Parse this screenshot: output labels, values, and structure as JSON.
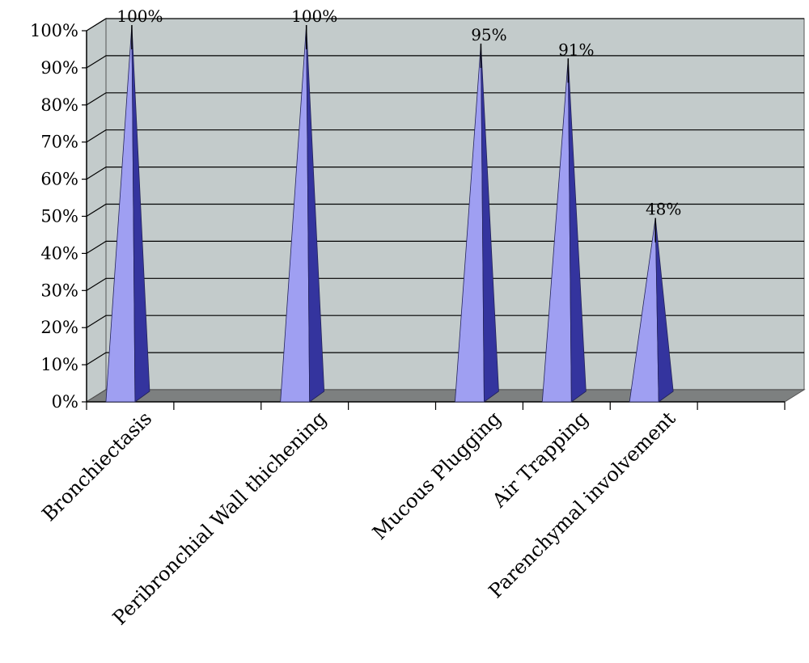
{
  "chart_data": {
    "type": "bar",
    "bar_shape": "pyramid-3d",
    "categories": [
      "Bronchiectasis",
      "",
      "Peribronchial Wall thichening",
      "",
      "Mucous Plugging",
      "Air Trapping",
      "Parenchymal involvement",
      ""
    ],
    "values": [
      100,
      null,
      100,
      null,
      95,
      91,
      48,
      null
    ],
    "data_labels": [
      "100%",
      "",
      "100%",
      "",
      "95%",
      "91%",
      "48%",
      ""
    ],
    "y_ticks": [
      "0%",
      "10%",
      "20%",
      "30%",
      "40%",
      "50%",
      "60%",
      "70%",
      "80%",
      "90%",
      "100%"
    ],
    "ylim": [
      0,
      100
    ],
    "grid": true,
    "colors": {
      "plot_background": "#c3cbcb",
      "floor": "#7d8080",
      "bar_light": "#9f9ff2",
      "bar_dark": "#34349e",
      "grid": "#000000"
    }
  }
}
